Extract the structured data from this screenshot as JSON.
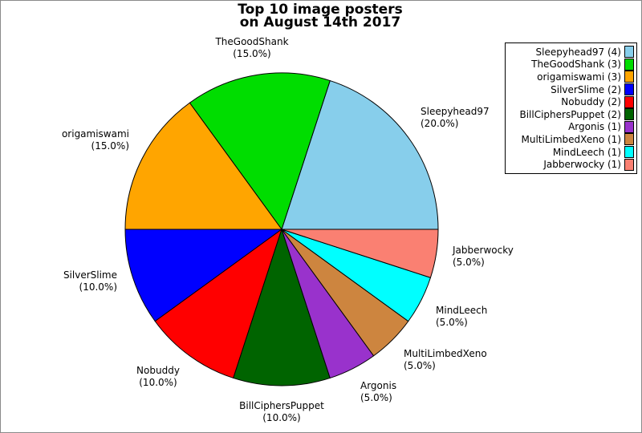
{
  "window": {
    "background": "#ffffff",
    "frame_border_color": "#8a8a8a"
  },
  "chart_data": {
    "type": "pie",
    "title_line1": "Top 10 image posters",
    "title_line2": "on August 14th 2017",
    "start_angle_deg": 0,
    "direction": "counterclockwise",
    "total_percent": 100,
    "legend_position": "upper right",
    "edge_color": "#000000",
    "slices": [
      {
        "name": "Sleepyhead97",
        "count": 4,
        "percent": 20.0,
        "pct_label": "(20.0%)",
        "legend_label": "Sleepyhead97 (4)",
        "color": "#87CEEB"
      },
      {
        "name": "TheGoodShank",
        "count": 3,
        "percent": 15.0,
        "pct_label": "(15.0%)",
        "legend_label": "TheGoodShank (3)",
        "color": "#00DD00"
      },
      {
        "name": "origamiswami",
        "count": 3,
        "percent": 15.0,
        "pct_label": "(15.0%)",
        "legend_label": "origamiswami (3)",
        "color": "#FFA500"
      },
      {
        "name": "SilverSlime",
        "count": 2,
        "percent": 10.0,
        "pct_label": "(10.0%)",
        "legend_label": "SilverSlime (2)",
        "color": "#0000FF"
      },
      {
        "name": "Nobuddy",
        "count": 2,
        "percent": 10.0,
        "pct_label": "(10.0%)",
        "legend_label": "Nobuddy (2)",
        "color": "#FF0000"
      },
      {
        "name": "BillCiphersPuppet",
        "count": 2,
        "percent": 10.0,
        "pct_label": "(10.0%)",
        "legend_label": "BillCiphersPuppet (2)",
        "color": "#006400"
      },
      {
        "name": "Argonis",
        "count": 1,
        "percent": 5.0,
        "pct_label": "(5.0%)",
        "legend_label": "Argonis (1)",
        "color": "#9932CC"
      },
      {
        "name": "MultiLimbedXeno",
        "count": 1,
        "percent": 5.0,
        "pct_label": "(5.0%)",
        "legend_label": "MultiLimbedXeno (1)",
        "color": "#CD853F"
      },
      {
        "name": "MindLeech",
        "count": 1,
        "percent": 5.0,
        "pct_label": "(5.0%)",
        "legend_label": "MindLeech (1)",
        "color": "#00FFFF"
      },
      {
        "name": "Jabberwocky",
        "count": 1,
        "percent": 5.0,
        "pct_label": "(5.0%)",
        "legend_label": "Jabberwocky (1)",
        "color": "#FA8072"
      }
    ]
  }
}
